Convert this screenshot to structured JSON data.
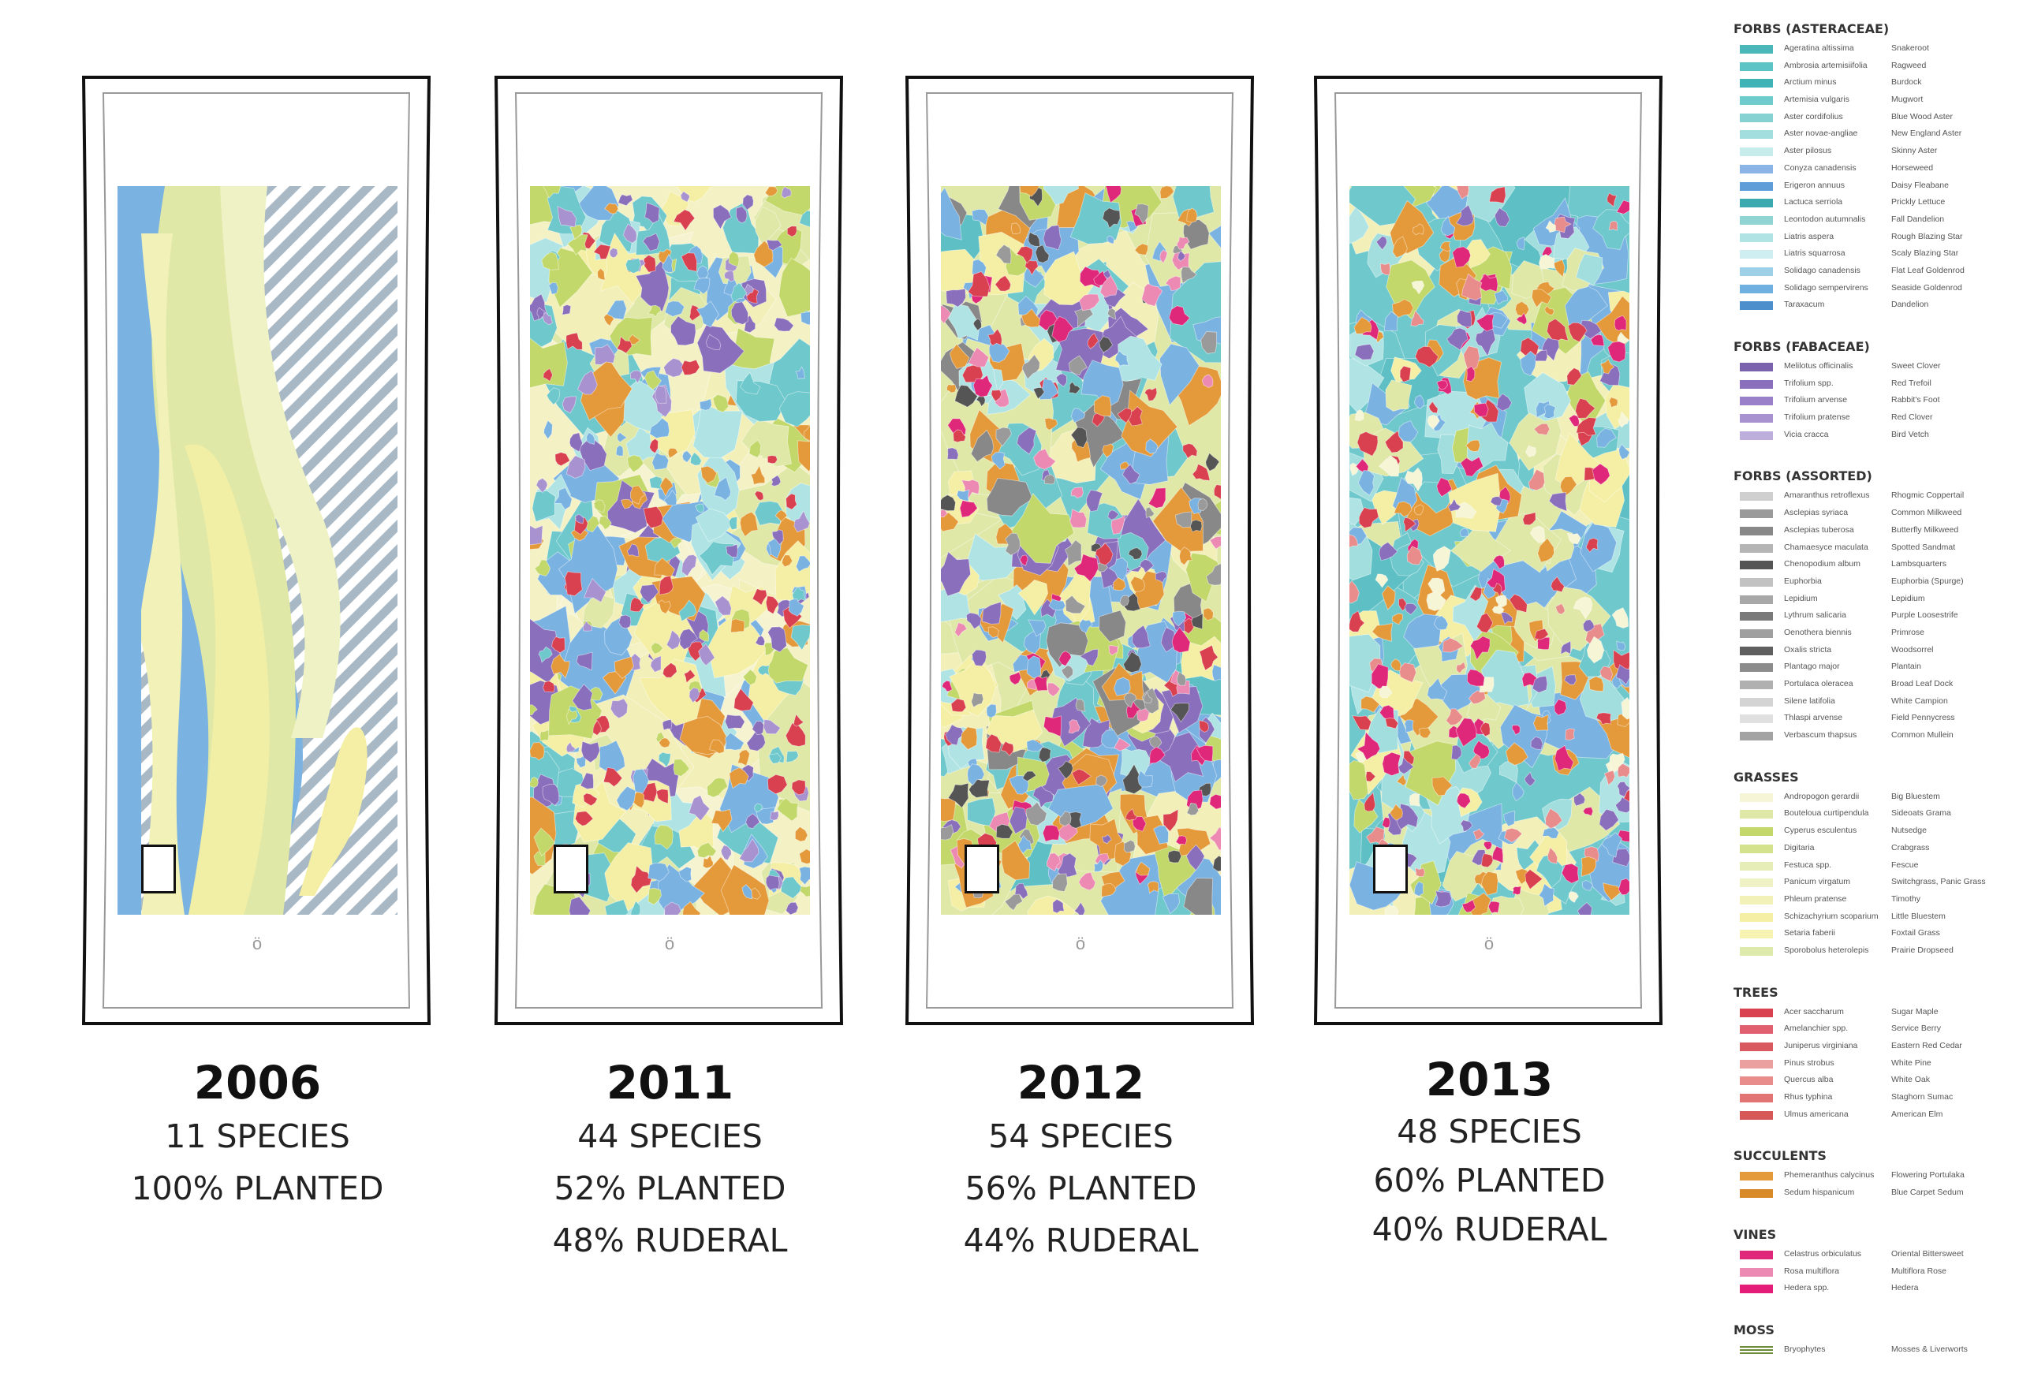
{
  "panels": [
    {
      "year": "2006",
      "stats": [
        "11 SPECIES",
        "100% PLANTED"
      ]
    },
    {
      "year": "2011",
      "stats": [
        "44 SPECIES",
        "52% PLANTED",
        "48% RUDERAL"
      ]
    },
    {
      "year": "2012",
      "stats": [
        "54 SPECIES",
        "56% PLANTED",
        "44% RUDERAL"
      ]
    },
    {
      "year": "2013",
      "stats": [
        "48 SPECIES",
        "60% PLANTED",
        "40% RUDERAL"
      ]
    }
  ],
  "legend": [
    {
      "title": "FORBS (ASTERACEAE)",
      "items": [
        {
          "sci": "Ageratina altissima",
          "com": "Snakeroot",
          "color": "#4ab8b8"
        },
        {
          "sci": "Ambrosia artemisiifolia",
          "com": "Ragweed",
          "color": "#5cc4c4"
        },
        {
          "sci": "Arctium minus",
          "com": "Burdock",
          "color": "#3fb3b5"
        },
        {
          "sci": "Artemisia vulgaris",
          "com": "Mugwort",
          "color": "#6ecccc"
        },
        {
          "sci": "Aster cordifolius",
          "com": "Blue Wood Aster",
          "color": "#86d2d2"
        },
        {
          "sci": "Aster novae-angliae",
          "com": "New England Aster",
          "color": "#a3dede"
        },
        {
          "sci": "Aster pilosus",
          "com": "Skinny Aster",
          "color": "#c6ecec"
        },
        {
          "sci": "Conyza canadensis",
          "com": "Horseweed",
          "color": "#8ab4e6"
        },
        {
          "sci": "Erigeron annuus",
          "com": "Daisy Fleabane",
          "color": "#5e9dd8"
        },
        {
          "sci": "Lactuca serriola",
          "com": "Prickly Lettuce",
          "color": "#3aa9b0"
        },
        {
          "sci": "Leontodon autumnalis",
          "com": "Fall Dandelion",
          "color": "#90d4d4"
        },
        {
          "sci": "Liatris aspera",
          "com": "Rough Blazing Star",
          "color": "#b0e4e4"
        },
        {
          "sci": "Liatris squarrosa",
          "com": "Scaly Blazing Star",
          "color": "#cfeef2"
        },
        {
          "sci": "Solidago canadensis",
          "com": "Flat Leaf Goldenrod",
          "color": "#9ed0e8"
        },
        {
          "sci": "Solidago sempervirens",
          "com": "Seaside Goldenrod",
          "color": "#6fb0e0"
        },
        {
          "sci": "Taraxacum",
          "com": "Dandelion",
          "color": "#4d8fcc"
        }
      ]
    },
    {
      "title": "FORBS (FABACEAE)",
      "items": [
        {
          "sci": "Melilotus officinalis",
          "com": "Sweet Clover",
          "color": "#7b62ad"
        },
        {
          "sci": "Trifolium spp.",
          "com": "Red Trefoil",
          "color": "#8a6fbc"
        },
        {
          "sci": "Trifolium arvense",
          "com": "Rabbit's Foot",
          "color": "#9a80c8"
        },
        {
          "sci": "Trifolium pratense",
          "com": "Red Clover",
          "color": "#a892d0"
        },
        {
          "sci": "Vicia cracca",
          "com": "Bird Vetch",
          "color": "#beaedc"
        }
      ]
    },
    {
      "title": "FORBS (ASSORTED)",
      "items": [
        {
          "sci": "Amaranthus retroflexus",
          "com": "Rhogmic Coppertail",
          "color": "#cfcfcf"
        },
        {
          "sci": "Asclepias syriaca",
          "com": "Common Milkweed",
          "color": "#9a9a9a"
        },
        {
          "sci": "Asclepias tuberosa",
          "com": "Butterfly Milkweed",
          "color": "#888888"
        },
        {
          "sci": "Chamaesyce maculata",
          "com": "Spotted Sandmat",
          "color": "#b5b5b5"
        },
        {
          "sci": "Chenopodium album",
          "com": "Lambsquarters",
          "color": "#555555"
        },
        {
          "sci": "Euphorbia",
          "com": "Euphorbia (Spurge)",
          "color": "#c2c2c2"
        },
        {
          "sci": "Lepidium",
          "com": "Lepidium",
          "color": "#a8a8a8"
        },
        {
          "sci": "Lythrum salicaria",
          "com": "Purple Loosestrife",
          "color": "#7a7a7a"
        },
        {
          "sci": "Oenothera biennis",
          "com": "Primrose",
          "color": "#9f9f9f"
        },
        {
          "sci": "Oxalis stricta",
          "com": "Woodsorrel",
          "color": "#5f5f5f"
        },
        {
          "sci": "Plantago major",
          "com": "Plantain",
          "color": "#8c8c8c"
        },
        {
          "sci": "Portulaca oleracea",
          "com": "Broad Leaf Dock",
          "color": "#b0b0b0"
        },
        {
          "sci": "Silene latifolia",
          "com": "White Campion",
          "color": "#d4d4d4"
        },
        {
          "sci": "Thlaspi arvense",
          "com": "Field Pennycress",
          "color": "#e0e0e0"
        },
        {
          "sci": "Verbascum thapsus",
          "com": "Common Mullein",
          "color": "#a3a3a3"
        }
      ]
    },
    {
      "title": "GRASSES",
      "items": [
        {
          "sci": "Andropogon gerardii",
          "com": "Big Bluestem",
          "color": "#f6f5d6"
        },
        {
          "sci": "Bouteloua curtipendula",
          "com": "Sideoats Grama",
          "color": "#dfe8a6"
        },
        {
          "sci": "Cyperus esculentus",
          "com": "Nutsedge",
          "color": "#c3d86a"
        },
        {
          "sci": "Digitaria",
          "com": "Crabgrass",
          "color": "#d4e28e"
        },
        {
          "sci": "Festuca spp.",
          "com": "Fescue",
          "color": "#e6edb6"
        },
        {
          "sci": "Panicum virgatum",
          "com": "Switchgrass, Panic Grass",
          "color": "#eef2c4"
        },
        {
          "sci": "Phleum pratense",
          "com": "Timothy",
          "color": "#f2f1b8"
        },
        {
          "sci": "Schizachyrium scoparium",
          "com": "Little Bluestem",
          "color": "#f4efa4"
        },
        {
          "sci": "Setaria faberii",
          "com": "Foxtail Grass",
          "color": "#f7f3b0"
        },
        {
          "sci": "Sporobolus heterolepis",
          "com": "Prairie Dropseed",
          "color": "#dcebac"
        }
      ]
    },
    {
      "title": "TREES",
      "items": [
        {
          "sci": "Acer saccharum",
          "com": "Sugar Maple",
          "color": "#d94050"
        },
        {
          "sci": "Amelanchier spp.",
          "com": "Service Berry",
          "color": "#e06070"
        },
        {
          "sci": "Juniperus virginiana",
          "com": "Eastern Red Cedar",
          "color": "#d85a60"
        },
        {
          "sci": "Pinus strobus",
          "com": "White Pine",
          "color": "#eba0a0"
        },
        {
          "sci": "Quercus alba",
          "com": "White Oak",
          "color": "#e88c8c"
        },
        {
          "sci": "Rhus typhina",
          "com": "Staghorn Sumac",
          "color": "#e27474"
        },
        {
          "sci": "Ulmus americana",
          "com": "American Elm",
          "color": "#d65858"
        }
      ]
    },
    {
      "title": "SUCCULENTS",
      "items": [
        {
          "sci": "Phemeranthus calycinus",
          "com": "Flowering Portulaka",
          "color": "#e49a3a"
        },
        {
          "sci": "Sedum hispanicum",
          "com": "Blue Carpet Sedum",
          "color": "#d88a28"
        }
      ]
    },
    {
      "title": "VINES",
      "items": [
        {
          "sci": "Celastrus orbiculatus",
          "com": "Oriental Bittersweet",
          "color": "#e0287a"
        },
        {
          "sci": "Rosa multiflora",
          "com": "Multiflora Rose",
          "color": "#ec8ab4"
        },
        {
          "sci": "Hedera spp.",
          "com": "Hedera",
          "color": "#e41e78"
        }
      ]
    },
    {
      "title": "MOSS",
      "items": [
        {
          "sci": "Bryophytes",
          "com": "Mosses & Liverworts",
          "color": "#6d8a3a"
        }
      ]
    }
  ]
}
